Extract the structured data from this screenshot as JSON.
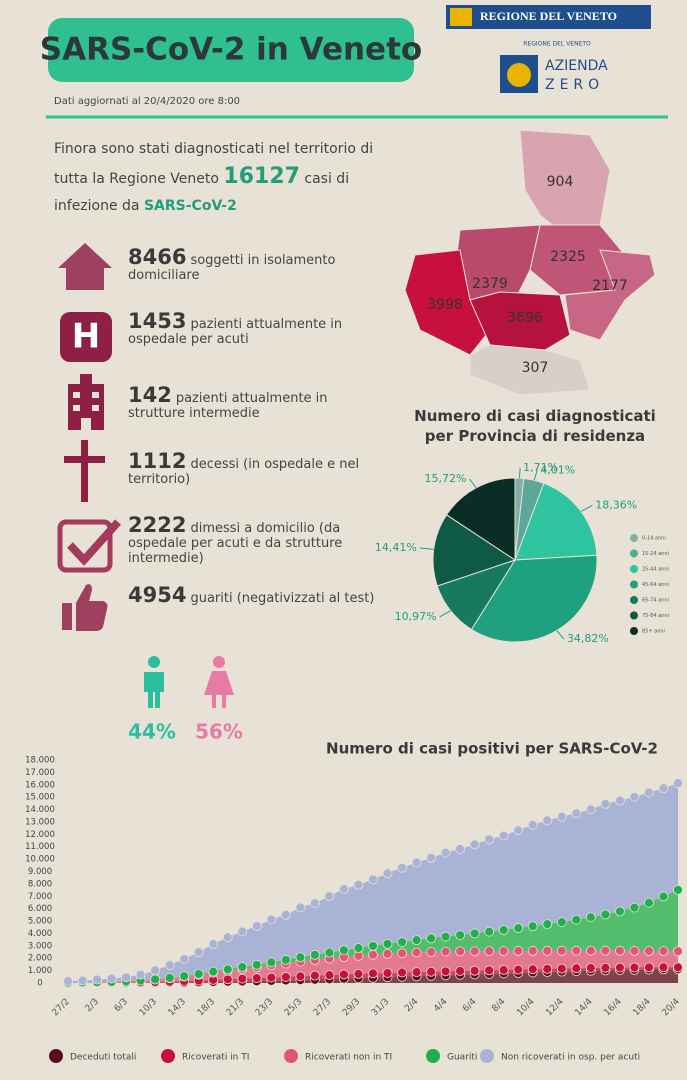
{
  "header": {
    "title": "SARS-CoV-2 in Veneto",
    "updated": "Dati aggiornati al 20/4/2020 ore 8:00",
    "region_logo": "REGIONE DEL VENETO",
    "azienda_caption": "REGIONE DEL VENETO",
    "azienda": "AZIENDA",
    "zero": "ZERO"
  },
  "intro": {
    "before": "Finora sono stati diagnosticati nel territorio di tutta la Regione Veneto",
    "total": 16127,
    "after": "casi di infezione da",
    "virus": "SARS-CoV-2"
  },
  "stats": [
    {
      "value": 8466,
      "text": "soggetti in isolamento domiciliare"
    },
    {
      "value": 1453,
      "text": "pazienti attualmente in ospedale per acuti"
    },
    {
      "value": 142,
      "text": "pazienti attualmente in strutture intermedie"
    },
    {
      "value": 1112,
      "text": "decessi (in ospedale e nel territorio)"
    },
    {
      "value": 2222,
      "text": "dimessi a domicilio (da ospedale per acuti e da strutture intermedie)"
    },
    {
      "value": 4954,
      "text": "guariti (negativizzati al test)"
    }
  ],
  "gender": {
    "male": "44%",
    "female": "56%"
  },
  "map": {
    "values": [
      904,
      2325,
      2379,
      2177,
      3998,
      3696,
      307
    ],
    "colors": [
      "#d9a3b0",
      "#c05577",
      "#b94a6c",
      "#c76685",
      "#c8103e",
      "#b5123d",
      "#d8d0c8"
    ]
  },
  "chart_data": [
    {
      "type": "pie",
      "title": "Numero di casi diagnosticati per Provincia di residenza",
      "categories": [
        "0-14 anni",
        "15-24 anni",
        "25-44 anni",
        "45-64 anni",
        "65-74 anni",
        "75-84 anni",
        "85+ anni"
      ],
      "values": [
        1.71,
        4.01,
        18.36,
        34.82,
        10.97,
        14.41,
        15.72
      ],
      "value_labels": [
        "1,71%",
        "4,01%",
        "18,36%",
        "34,82%",
        "10,97%",
        "14,41%",
        "15,72%"
      ],
      "colors": [
        "#7fb0a6",
        "#5aa897",
        "#2ec4a0",
        "#1fa07f",
        "#157a5e",
        "#0e5a45",
        "#0a2e25"
      ]
    },
    {
      "type": "stacked_area",
      "title": "Numero di casi positivi per SARS-CoV-2",
      "categories": [
        "27/2",
        null,
        "2/3",
        null,
        "6/3",
        null,
        "10/3",
        null,
        "14/3",
        null,
        "18/3",
        null,
        "21/3",
        null,
        "23/3",
        null,
        "25/3",
        null,
        "27/3",
        null,
        "29/3",
        null,
        "31/3",
        null,
        "2/4",
        null,
        "4/4",
        null,
        "6/4",
        null,
        "8/4",
        null,
        "10/4",
        null,
        "12/4",
        null,
        "14/4",
        null,
        "16/4",
        null,
        "18/4",
        null,
        "20/4"
      ],
      "series": [
        {
          "name": "Deceduti totali",
          "color": "#5a0f1f",
          "values": [
            1,
            2,
            3,
            5,
            7,
            11,
            17,
            23,
            35,
            55,
            80,
            100,
            120,
            140,
            170,
            200,
            230,
            265,
            300,
            340,
            380,
            420,
            460,
            500,
            540,
            580,
            620,
            660,
            690,
            730,
            770,
            810,
            850,
            890,
            920,
            960,
            990,
            1020,
            1040,
            1060,
            1080,
            1100,
            1112
          ]
        },
        {
          "name": "Ricoverati in TI",
          "color": "#c8103e",
          "values": [
            5,
            8,
            12,
            18,
            25,
            40,
            60,
            80,
            110,
            140,
            170,
            200,
            230,
            250,
            270,
            290,
            310,
            330,
            340,
            350,
            355,
            355,
            350,
            345,
            340,
            330,
            320,
            310,
            300,
            290,
            280,
            270,
            260,
            250,
            240,
            230,
            220,
            210,
            200,
            190,
            180,
            170,
            160
          ]
        },
        {
          "name": "Ricoverati non in TI",
          "color": "#e25577",
          "values": [
            20,
            30,
            45,
            60,
            90,
            140,
            200,
            280,
            370,
            470,
            580,
            680,
            780,
            880,
            980,
            1080,
            1180,
            1260,
            1330,
            1400,
            1450,
            1500,
            1540,
            1560,
            1580,
            1590,
            1590,
            1580,
            1570,
            1550,
            1530,
            1510,
            1480,
            1460,
            1440,
            1420,
            1400,
            1380,
            1360,
            1340,
            1320,
            1310,
            1293
          ]
        },
        {
          "name": "Guariti",
          "color": "#20b04a",
          "values": [
            0,
            0,
            0,
            2,
            5,
            10,
            15,
            25,
            40,
            60,
            90,
            120,
            160,
            200,
            250,
            300,
            360,
            420,
            490,
            560,
            640,
            720,
            810,
            900,
            1000,
            1100,
            1210,
            1320,
            1440,
            1570,
            1700,
            1840,
            1990,
            2150,
            2320,
            2500,
            2700,
            2920,
            3180,
            3500,
            3900,
            4400,
            4954
          ]
        },
        {
          "name": "Non ricoverati in osp. per acuti",
          "color": "#a8b3d6",
          "values": [
            124,
            150,
            210,
            275,
            333,
            469,
            728,
            1042,
            1385,
            1755,
            2230,
            2590,
            2870,
            3130,
            3450,
            3640,
            4020,
            4165,
            4550,
            4940,
            5095,
            5365,
            5700,
            5995,
            6260,
            6510,
            6780,
            6950,
            7190,
            7450,
            7620,
            7900,
            8180,
            8370,
            8500,
            8590,
            8710,
            8930,
            8940,
            8930,
            8900,
            8740,
            8608
          ]
        }
      ],
      "ylim": [
        0,
        18000
      ],
      "yticks": [
        0,
        {
          "value": 1000,
          "label": "1.000"
        },
        {
          "value": 2000,
          "label": "2.000"
        },
        {
          "value": 3000,
          "label": "3.000"
        },
        {
          "value": 4000,
          "label": "4.000"
        },
        {
          "value": 5000,
          "label": "5.000"
        },
        {
          "value": 6000,
          "label": "6.000"
        },
        {
          "value": 7000,
          "label": "7.000"
        },
        {
          "value": 8000,
          "label": "8.000"
        },
        {
          "value": 9000,
          "label": "9.000"
        },
        {
          "value": 10000,
          "label": "10.000"
        },
        {
          "value": 11000,
          "label": "11.000"
        },
        {
          "value": 12000,
          "label": "12.000"
        },
        {
          "value": 13000,
          "label": "13.000"
        },
        {
          "value": 14000,
          "label": "14.000"
        },
        {
          "value": 15000,
          "label": "15.000"
        },
        {
          "value": 16000,
          "label": "16.000"
        },
        {
          "value": 17000,
          "label": "17.000"
        },
        {
          "value": 18000,
          "label": "18.000"
        }
      ],
      "grid": false
    }
  ]
}
